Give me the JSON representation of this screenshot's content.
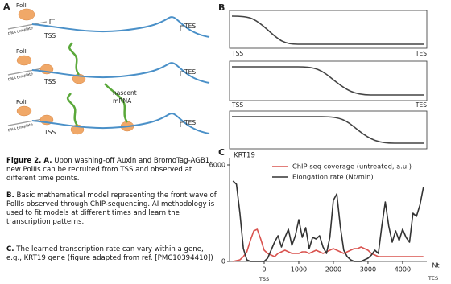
{
  "panel_labels": [
    "A",
    "B",
    "C"
  ],
  "panel_a": {
    "rows": [
      {
        "polii": "PolII",
        "template": "DNA template",
        "tss": "TSS",
        "tes": "TES"
      },
      {
        "polii": "PolII",
        "template": "DNA template",
        "tss": "TSS",
        "tes": "TES"
      },
      {
        "polii": "PolII",
        "template": "DNA template",
        "tss": "TSS",
        "tes": "TES",
        "nascent": "nascent",
        "mrna": "mRNA"
      }
    ]
  },
  "caption": [
    {
      "bold": "Figure 2. A.",
      "text": " Upon washing-off Auxin and BromoTag-AGB1, new PolIIs can be recruited from TSS and observed at different time points."
    },
    {
      "bold": "B.",
      "text": " Basic mathematical model representing the front wave of PolIIs observed through ChIP-sequencing. AI methodology is used to fit models at different times and learn the transcription patterns."
    },
    {
      "bold": "C.",
      "text": " The learned transcription rate can vary within a gene, e.g., KRT19 gene (figure adapted from ref. [PMC10394410])"
    }
  ],
  "panel_b": {
    "plots": [
      {
        "start": "TSS",
        "end": "TES"
      },
      {
        "start": "TSS",
        "end": "TES"
      },
      {
        "start": "TSS",
        "end": "TES"
      }
    ]
  },
  "chart_data": {
    "type": "line",
    "title": "KRT19",
    "x_label": "Nt",
    "start_label": "TSS",
    "end_label": "TES",
    "x": [
      -900,
      -800,
      -700,
      -600,
      -500,
      -400,
      -300,
      -200,
      -100,
      0,
      100,
      200,
      300,
      400,
      500,
      600,
      700,
      800,
      900,
      1000,
      1100,
      1200,
      1300,
      1400,
      1500,
      1600,
      1700,
      1800,
      1900,
      2000,
      2100,
      2200,
      2300,
      2400,
      2500,
      2600,
      2700,
      2800,
      2900,
      3000,
      3100,
      3200,
      3300,
      3400,
      3500,
      3600,
      3700,
      3800,
      3900,
      4000,
      4100,
      4200,
      4300,
      4400,
      4500,
      4600
    ],
    "series": [
      {
        "name": "ChIP-seq coverage (untreated, a.u.)",
        "color": "#d9534f",
        "values": [
          0,
          50,
          100,
          300,
          600,
          1300,
          1900,
          2000,
          1400,
          700,
          500,
          400,
          300,
          500,
          600,
          700,
          600,
          500,
          500,
          500,
          600,
          600,
          500,
          600,
          700,
          600,
          500,
          600,
          700,
          800,
          700,
          600,
          500,
          600,
          700,
          800,
          800,
          900,
          800,
          700,
          500,
          400,
          300,
          300,
          300,
          300,
          300,
          300,
          300,
          300,
          300,
          300,
          300,
          300,
          300,
          300
        ]
      },
      {
        "name": "Elongation rate (Nt/min)",
        "color": "#333333",
        "values": [
          5000,
          4800,
          3000,
          800,
          100,
          0,
          0,
          0,
          0,
          0,
          200,
          700,
          1200,
          1600,
          900,
          1500,
          2000,
          1000,
          1600,
          2600,
          1500,
          2100,
          800,
          1500,
          1400,
          1600,
          900,
          500,
          1500,
          3800,
          4200,
          2200,
          700,
          300,
          100,
          0,
          0,
          0,
          100,
          200,
          400,
          700,
          500,
          2200,
          3700,
          2200,
          1200,
          1900,
          1300,
          2000,
          1500,
          1200,
          3000,
          2800,
          3500,
          4600
        ]
      }
    ],
    "xlim": [
      -1000,
      4700
    ],
    "ylim": [
      0,
      6400
    ],
    "xticks": [
      0,
      1000,
      2000,
      3000,
      4000
    ],
    "yticks": [
      0,
      6000
    ]
  }
}
